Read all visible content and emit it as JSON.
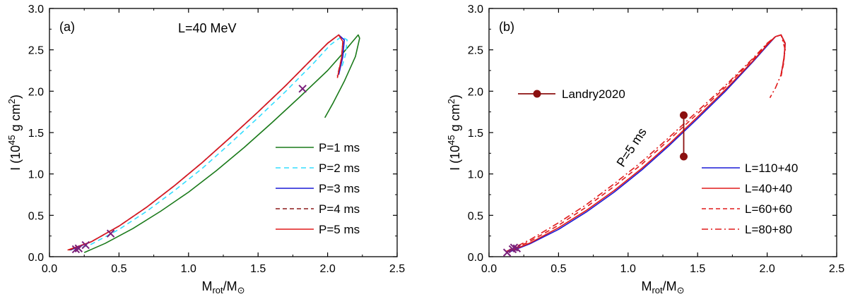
{
  "chart_data": [
    {
      "type": "line",
      "panel_label": "(a)",
      "annotation": "L=40 MeV",
      "xlabel": {
        "main": "M",
        "sub": "rot",
        "after": "/M",
        "sub2": "⊙"
      },
      "ylabel": {
        "prefix": "I (10",
        "sup1": "45",
        "middle": " g cm",
        "sup2": "2",
        "suffix": ")"
      },
      "xlim": [
        0,
        2.5
      ],
      "ylim": [
        0,
        3.0
      ],
      "xticks": [
        0.0,
        0.5,
        1.0,
        1.5,
        2.0,
        2.5
      ],
      "xtick_labels": [
        "0.0",
        "0.5",
        "1.0",
        "1.5",
        "2.0",
        "2.5"
      ],
      "yticks": [
        0.0,
        0.5,
        1.0,
        1.5,
        2.0,
        2.5,
        3.0
      ],
      "ytick_labels": [
        "0.0",
        "0.5",
        "1.0",
        "1.5",
        "2.0",
        "2.5",
        "3.0"
      ],
      "legend_position": "bottom-right",
      "series": [
        {
          "name": "P=1 ms",
          "color": "#1a7a1a",
          "style": "solid",
          "points": [
            [
              0.25,
              0.05
            ],
            [
              0.4,
              0.16
            ],
            [
              0.6,
              0.34
            ],
            [
              0.8,
              0.55
            ],
            [
              1.0,
              0.78
            ],
            [
              1.2,
              1.04
            ],
            [
              1.4,
              1.32
            ],
            [
              1.6,
              1.62
            ],
            [
              1.8,
              1.93
            ],
            [
              2.0,
              2.25
            ],
            [
              2.1,
              2.44
            ],
            [
              2.18,
              2.6
            ],
            [
              2.22,
              2.68
            ],
            [
              2.23,
              2.64
            ],
            [
              2.2,
              2.42
            ],
            [
              2.12,
              2.12
            ],
            [
              2.04,
              1.86
            ],
            [
              1.98,
              1.68
            ]
          ]
        },
        {
          "name": "P=2 ms",
          "color": "#33ddff",
          "style": "dashed",
          "points": [
            [
              0.18,
              0.08
            ],
            [
              0.3,
              0.15
            ],
            [
              0.5,
              0.33
            ],
            [
              0.7,
              0.55
            ],
            [
              0.9,
              0.8
            ],
            [
              1.1,
              1.07
            ],
            [
              1.3,
              1.37
            ],
            [
              1.5,
              1.68
            ],
            [
              1.7,
              2.0
            ],
            [
              1.9,
              2.34
            ],
            [
              2.02,
              2.56
            ],
            [
              2.1,
              2.66
            ],
            [
              2.14,
              2.62
            ],
            [
              2.13,
              2.45
            ],
            [
              2.1,
              2.28
            ]
          ]
        },
        {
          "name": "P=3 ms",
          "color": "#1a1ad6",
          "style": "solid",
          "points": [
            [
              0.15,
              0.08
            ],
            [
              0.3,
              0.18
            ],
            [
              0.5,
              0.37
            ],
            [
              0.7,
              0.6
            ],
            [
              0.9,
              0.86
            ],
            [
              1.1,
              1.14
            ],
            [
              1.3,
              1.44
            ],
            [
              1.5,
              1.75
            ],
            [
              1.7,
              2.07
            ],
            [
              1.9,
              2.41
            ],
            [
              2.0,
              2.58
            ],
            [
              2.08,
              2.68
            ],
            [
              2.12,
              2.62
            ],
            [
              2.11,
              2.42
            ],
            [
              2.08,
              2.2
            ]
          ]
        },
        {
          "name": "P=4 ms",
          "color": "#8b1a1a",
          "style": "dashed",
          "points": [
            [
              0.14,
              0.08
            ],
            [
              0.3,
              0.18
            ],
            [
              0.5,
              0.37
            ],
            [
              0.7,
              0.6
            ],
            [
              0.9,
              0.86
            ],
            [
              1.1,
              1.14
            ],
            [
              1.3,
              1.44
            ],
            [
              1.5,
              1.75
            ],
            [
              1.7,
              2.07
            ],
            [
              1.9,
              2.41
            ],
            [
              2.0,
              2.58
            ],
            [
              2.08,
              2.68
            ],
            [
              2.11,
              2.6
            ],
            [
              2.1,
              2.4
            ],
            [
              2.07,
              2.18
            ]
          ]
        },
        {
          "name": "P=5 ms",
          "color": "#e01a1a",
          "style": "solid",
          "points": [
            [
              0.13,
              0.08
            ],
            [
              0.3,
              0.18
            ],
            [
              0.5,
              0.37
            ],
            [
              0.7,
              0.6
            ],
            [
              0.9,
              0.86
            ],
            [
              1.1,
              1.14
            ],
            [
              1.3,
              1.44
            ],
            [
              1.5,
              1.75
            ],
            [
              1.7,
              2.07
            ],
            [
              1.9,
              2.41
            ],
            [
              2.0,
              2.58
            ],
            [
              2.08,
              2.68
            ],
            [
              2.11,
              2.6
            ],
            [
              2.1,
              2.4
            ],
            [
              2.07,
              2.16
            ]
          ]
        }
      ],
      "markers": {
        "type": "x",
        "color": "#7a1f7a",
        "points": [
          [
            0.19,
            0.09
          ],
          [
            0.21,
            0.1
          ],
          [
            0.26,
            0.14
          ],
          [
            0.44,
            0.28
          ],
          [
            1.82,
            2.03
          ]
        ]
      }
    },
    {
      "type": "line",
      "panel_label": "(b)",
      "annotation": "P=5 ms",
      "xlabel": {
        "main": "M",
        "sub": "rot",
        "after": "/M",
        "sub2": "⊙"
      },
      "ylabel": {
        "prefix": "I (10",
        "sup1": "45",
        "middle": " g cm",
        "sup2": "2",
        "suffix": ")"
      },
      "xlim": [
        0,
        2.5
      ],
      "ylim": [
        0,
        3.0
      ],
      "xticks": [
        0.0,
        0.5,
        1.0,
        1.5,
        2.0,
        2.5
      ],
      "xtick_labels": [
        "0.0",
        "0.5",
        "1.0",
        "1.5",
        "2.0",
        "2.5"
      ],
      "yticks": [
        0.0,
        0.5,
        1.0,
        1.5,
        2.0,
        2.5,
        3.0
      ],
      "ytick_labels": [
        "0.0",
        "0.5",
        "1.0",
        "1.5",
        "2.0",
        "2.5",
        "3.0"
      ],
      "legend_position": "bottom-right",
      "series": [
        {
          "name": "L=110+40",
          "color": "#1a1ad6",
          "style": "solid",
          "points": [
            [
              0.15,
              0.06
            ],
            [
              0.3,
              0.16
            ],
            [
              0.5,
              0.33
            ],
            [
              0.7,
              0.54
            ],
            [
              0.9,
              0.78
            ],
            [
              1.1,
              1.05
            ],
            [
              1.3,
              1.35
            ],
            [
              1.5,
              1.67
            ],
            [
              1.7,
              2.0
            ],
            [
              1.9,
              2.36
            ],
            [
              2.0,
              2.55
            ],
            [
              2.06,
              2.66
            ],
            [
              2.1,
              2.68
            ],
            [
              2.13,
              2.58
            ],
            [
              2.12,
              2.38
            ],
            [
              2.1,
              2.2
            ]
          ]
        },
        {
          "name": "L=40+40",
          "color": "#e01a1a",
          "style": "solid",
          "points": [
            [
              0.14,
              0.06
            ],
            [
              0.3,
              0.17
            ],
            [
              0.5,
              0.35
            ],
            [
              0.7,
              0.56
            ],
            [
              0.9,
              0.8
            ],
            [
              1.1,
              1.07
            ],
            [
              1.3,
              1.37
            ],
            [
              1.5,
              1.69
            ],
            [
              1.7,
              2.02
            ],
            [
              1.9,
              2.37
            ],
            [
              2.0,
              2.56
            ],
            [
              2.06,
              2.66
            ],
            [
              2.1,
              2.68
            ],
            [
              2.13,
              2.58
            ],
            [
              2.12,
              2.38
            ],
            [
              2.1,
              2.2
            ]
          ]
        },
        {
          "name": "L=60+60",
          "color": "#e01a1a",
          "style": "dashed",
          "points": [
            [
              0.13,
              0.06
            ],
            [
              0.3,
              0.19
            ],
            [
              0.5,
              0.38
            ],
            [
              0.7,
              0.6
            ],
            [
              0.9,
              0.85
            ],
            [
              1.1,
              1.12
            ],
            [
              1.3,
              1.42
            ],
            [
              1.5,
              1.73
            ],
            [
              1.7,
              2.05
            ],
            [
              1.9,
              2.39
            ],
            [
              2.0,
              2.57
            ],
            [
              2.06,
              2.66
            ],
            [
              2.1,
              2.68
            ],
            [
              2.13,
              2.56
            ],
            [
              2.12,
              2.35
            ],
            [
              2.1,
              2.18
            ]
          ]
        },
        {
          "name": "L=80+80",
          "color": "#e01a1a",
          "style": "dashdot",
          "points": [
            [
              0.12,
              0.06
            ],
            [
              0.3,
              0.21
            ],
            [
              0.5,
              0.41
            ],
            [
              0.7,
              0.63
            ],
            [
              0.9,
              0.88
            ],
            [
              1.1,
              1.15
            ],
            [
              1.3,
              1.45
            ],
            [
              1.5,
              1.76
            ],
            [
              1.7,
              2.07
            ],
            [
              1.9,
              2.4
            ],
            [
              2.0,
              2.58
            ],
            [
              2.06,
              2.66
            ],
            [
              2.1,
              2.68
            ],
            [
              2.13,
              2.5
            ],
            [
              2.1,
              2.2
            ],
            [
              2.06,
              2.04
            ],
            [
              2.02,
              1.92
            ]
          ]
        }
      ],
      "markers": {
        "type": "x",
        "color": "#7a1f7a",
        "points": [
          [
            0.13,
            0.05
          ],
          [
            0.17,
            0.09
          ],
          [
            0.18,
            0.11
          ],
          [
            0.2,
            0.1
          ]
        ]
      },
      "data_point": {
        "name": "Landry2020",
        "color": "#8b1010",
        "x": 1.4,
        "y_low": 1.21,
        "y_high": 1.71
      }
    }
  ]
}
